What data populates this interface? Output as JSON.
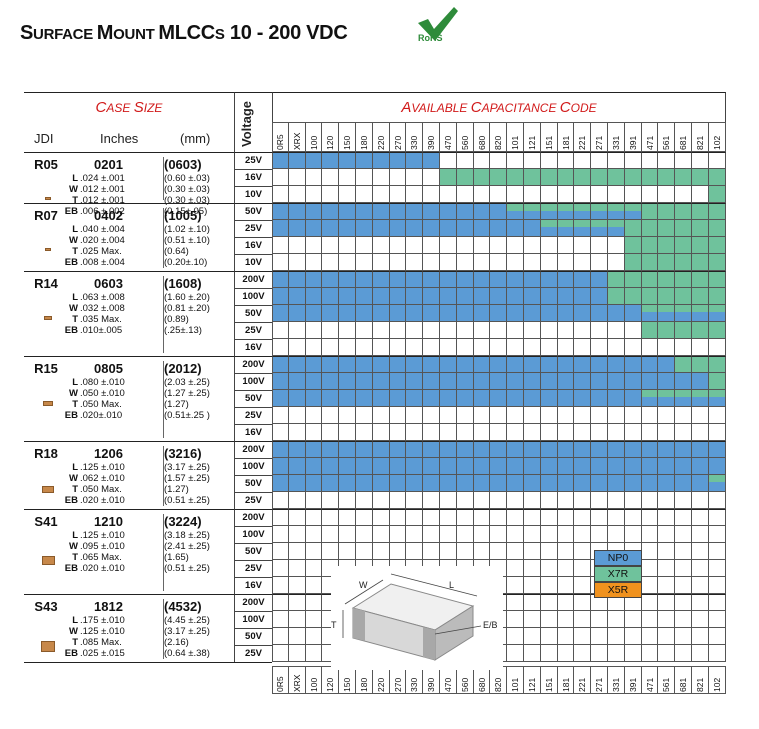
{
  "title": {
    "part1": "S",
    "part1b": "URFACE ",
    "part2": "M",
    "part2b": "OUNT ",
    "part3": "MLCC",
    "part3b": "S",
    "part4": " 10 - 200 VDC"
  },
  "rohs_label": "RoHS",
  "case_size_title": {
    "a": "C",
    "b": "ASE ",
    "c": "S",
    "d": "IZE"
  },
  "cap_title": {
    "a": "A",
    "b": "VAILABLE ",
    "c": "C",
    "d": "APACITANCE ",
    "e": "C",
    "f": "ODE"
  },
  "voltage_header": "Voltage",
  "col_jdi": "JDI",
  "col_inches": "Inches",
  "col_mm": "(mm)",
  "cap_codes": [
    "0R5",
    "XRX",
    "100",
    "120",
    "150",
    "180",
    "220",
    "270",
    "330",
    "390",
    "470",
    "560",
    "680",
    "820",
    "101",
    "121",
    "151",
    "181",
    "221",
    "271",
    "331",
    "391",
    "471",
    "561",
    "681",
    "821",
    "102"
  ],
  "colors": {
    "NP0": "#5b9bd5",
    "X7R": "#6fc29c",
    "X5R": "#f0921e",
    "blank": "#ffffff"
  },
  "legend": [
    {
      "label": "NP0",
      "color": "#5b9bd5"
    },
    {
      "label": "X7R",
      "color": "#6fc29c"
    },
    {
      "label": "X5R",
      "color": "#f0921e"
    }
  ],
  "diagram_labels": {
    "w": "W",
    "l": "L",
    "t": "T",
    "eb": "E/B"
  },
  "cases": [
    {
      "jdi": "R05",
      "inch": "0201",
      "mm": "(0603)",
      "dims": [
        {
          "k": "L",
          "v": ".024 ±.001",
          "mm": "(0.60 ±.03)"
        },
        {
          "k": "W",
          "v": ".012 ±.001",
          "mm": "(0.30 ±.03)"
        },
        {
          "k": "T",
          "v": ".012 ±.001",
          "mm": "(0.30 ±.03)"
        },
        {
          "k": "EB",
          "v": ".006 ±.002",
          "mm": "(0.15±.05)"
        }
      ],
      "voltages": [
        "25V",
        "16V",
        "10V"
      ],
      "rows": [
        [
          [
            "N",
            0,
            10
          ]
        ],
        [
          [
            "X",
            10,
            27
          ]
        ],
        [
          [
            "X",
            26,
            27
          ]
        ]
      ]
    },
    {
      "jdi": "R07",
      "inch": "0402",
      "mm": "(1005)",
      "dims": [
        {
          "k": "L",
          "v": ".040 ±.004",
          "mm": "(1.02 ±.10)"
        },
        {
          "k": "W",
          "v": ".020 ±.004",
          "mm": "(0.51 ±.10)"
        },
        {
          "k": "T",
          "v": ".025 Max.",
          "mm": "(0.64)"
        },
        {
          "k": "EB",
          "v": ".008 ±.004",
          "mm": "(0.20±.10)"
        }
      ],
      "voltages": [
        "50V",
        "25V",
        "16V",
        "10V"
      ],
      "rows": [
        [
          [
            "N",
            0,
            14
          ],
          [
            "NX",
            14,
            22
          ],
          [
            "X",
            22,
            27
          ]
        ],
        [
          [
            "N",
            0,
            16
          ],
          [
            "NX",
            16,
            21
          ],
          [
            "X",
            21,
            27
          ]
        ],
        [
          [
            "X",
            21,
            27
          ]
        ],
        [
          [
            "X",
            21,
            27
          ]
        ]
      ]
    },
    {
      "jdi": "R14",
      "inch": "0603",
      "mm": "(1608)",
      "dims": [
        {
          "k": "L",
          "v": ".063 ±.008",
          "mm": "(1.60 ±.20)"
        },
        {
          "k": "W",
          "v": ".032 ±.008",
          "mm": "(0.81 ±.20)"
        },
        {
          "k": "T",
          "v": ".035 Max.",
          "mm": "(0.89)"
        },
        {
          "k": "EB",
          "v": ".010±.005",
          "mm": "(.25±.13)"
        }
      ],
      "voltages": [
        "200V",
        "100V",
        "50V",
        "25V",
        "16V"
      ],
      "rows": [
        [
          [
            "N",
            0,
            20
          ],
          [
            "X",
            20,
            27
          ]
        ],
        [
          [
            "N",
            0,
            20
          ],
          [
            "X",
            20,
            27
          ]
        ],
        [
          [
            "N",
            0,
            22
          ],
          [
            "NX",
            22,
            27
          ]
        ],
        [
          [
            "X",
            22,
            27
          ]
        ],
        []
      ]
    },
    {
      "jdi": "R15",
      "inch": "0805",
      "mm": "(2012)",
      "dims": [
        {
          "k": "L",
          "v": ".080 ±.010",
          "mm": "(2.03 ±.25)"
        },
        {
          "k": "W",
          "v": ".050 ±.010",
          "mm": "(1.27 ±.25)"
        },
        {
          "k": "T",
          "v": ".050 Max.",
          "mm": "(1.27)"
        },
        {
          "k": "EB",
          "v": ".020±.010",
          "mm": "(0.51±.25 )"
        }
      ],
      "voltages": [
        "200V",
        "100V",
        "50V",
        "25V",
        "16V"
      ],
      "rows": [
        [
          [
            "N",
            0,
            24
          ],
          [
            "X",
            24,
            27
          ]
        ],
        [
          [
            "N",
            0,
            26
          ],
          [
            "X",
            26,
            27
          ]
        ],
        [
          [
            "N",
            0,
            22
          ],
          [
            "NX",
            22,
            27
          ]
        ],
        [],
        []
      ]
    },
    {
      "jdi": "R18",
      "inch": "1206",
      "mm": "(3216)",
      "dims": [
        {
          "k": "L",
          "v": ".125 ±.010",
          "mm": "(3.17 ±.25)"
        },
        {
          "k": "W",
          "v": ".062 ±.010",
          "mm": "(1.57 ±.25)"
        },
        {
          "k": "T",
          "v": ".050 Max.",
          "mm": "(1.27)"
        },
        {
          "k": "EB",
          "v": ".020 ±.010",
          "mm": "(0.51 ±.25)"
        }
      ],
      "voltages": [
        "200V",
        "100V",
        "50V",
        "25V"
      ],
      "rows": [
        [
          [
            "N",
            0,
            27
          ]
        ],
        [
          [
            "N",
            0,
            27
          ]
        ],
        [
          [
            "N",
            0,
            26
          ],
          [
            "NX",
            26,
            27
          ]
        ],
        []
      ]
    },
    {
      "jdi": "S41",
      "inch": "1210",
      "mm": "(3224)",
      "dims": [
        {
          "k": "L",
          "v": ".125 ±.010",
          "mm": "(3.18 ±.25)"
        },
        {
          "k": "W",
          "v": ".095 ±.010",
          "mm": "(2.41 ±.25)"
        },
        {
          "k": "T",
          "v": ".065 Max.",
          "mm": "(1.65)"
        },
        {
          "k": "EB",
          "v": ".020 ±.010",
          "mm": "(0.51 ±.25)"
        }
      ],
      "voltages": [
        "200V",
        "100V",
        "50V",
        "25V",
        "16V"
      ],
      "rows": [
        [],
        [],
        [],
        [],
        []
      ]
    },
    {
      "jdi": "S43",
      "inch": "1812",
      "mm": "(4532)",
      "dims": [
        {
          "k": "L",
          "v": ".175 ±.010",
          "mm": "(4.45 ±.25)"
        },
        {
          "k": "W",
          "v": ".125 ±.010",
          "mm": "(3.17 ±.25)"
        },
        {
          "k": "T",
          "v": ".085 Max.",
          "mm": "(2.16)"
        },
        {
          "k": "EB",
          "v": ".025 ±.015",
          "mm": "(0.64 ±.38)"
        }
      ],
      "voltages": [
        "200V",
        "100V",
        "50V",
        "25V"
      ],
      "rows": [
        [],
        [],
        [],
        []
      ]
    }
  ]
}
